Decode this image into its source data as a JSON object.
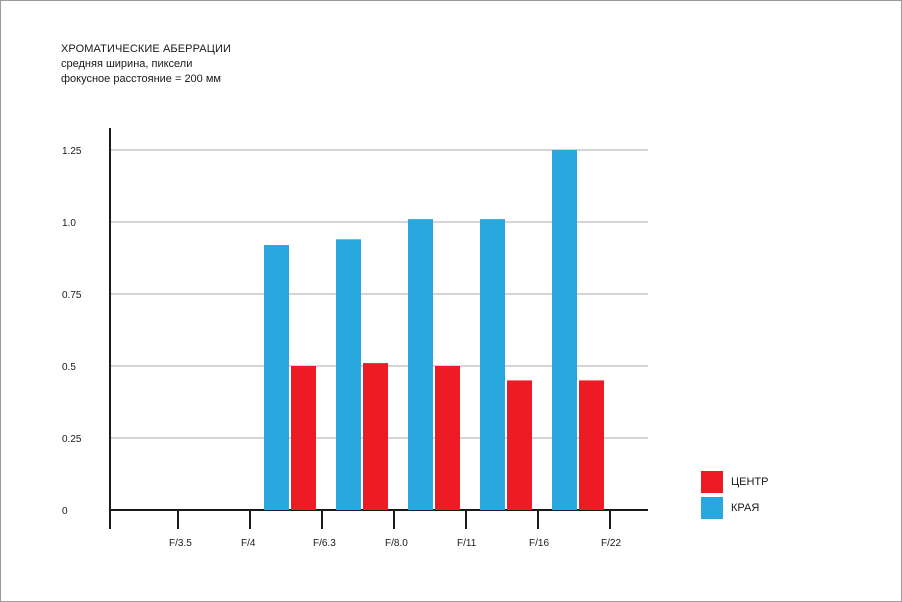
{
  "header": {
    "title": "ХРОМАТИЧЕСКИЕ АБЕРРАЦИИ",
    "subtitle": "средняя ширина, пиксели",
    "note": "фокусное расстояние = 200 мм"
  },
  "chart_data": {
    "type": "bar",
    "title": "ХРОМАТИЧЕСКИЕ АБЕРРАЦИИ",
    "subtitle": "средняя ширина, пиксели",
    "annotation": "фокусное расстояние = 200 мм",
    "categories": [
      "F/3.5",
      "F/4",
      "F/6.3",
      "F/8.0",
      "F/11",
      "F/16",
      "F/22"
    ],
    "series": [
      {
        "name": "КРАЯ",
        "color": "#29a8e0",
        "values": [
          null,
          null,
          0.92,
          0.94,
          1.01,
          1.01,
          1.25
        ]
      },
      {
        "name": "ЦЕНТР",
        "color": "#ed1c24",
        "values": [
          null,
          null,
          0.5,
          0.51,
          0.5,
          0.45,
          0.45
        ]
      }
    ],
    "yticks": [
      {
        "value": 0,
        "label": "0"
      },
      {
        "value": 0.25,
        "label": "0.25"
      },
      {
        "value": 0.5,
        "label": "0.5"
      },
      {
        "value": 0.75,
        "label": "0.75"
      },
      {
        "value": 1.0,
        "label": "1.0"
      },
      {
        "value": 1.25,
        "label": "1.25"
      }
    ],
    "ylim": [
      0,
      1.4
    ],
    "grid": true,
    "legend_position": "bottom-right",
    "legend": [
      {
        "name": "ЦЕНТР",
        "color": "#ed1c24"
      },
      {
        "name": "КРАЯ",
        "color": "#29a8e0"
      }
    ]
  }
}
